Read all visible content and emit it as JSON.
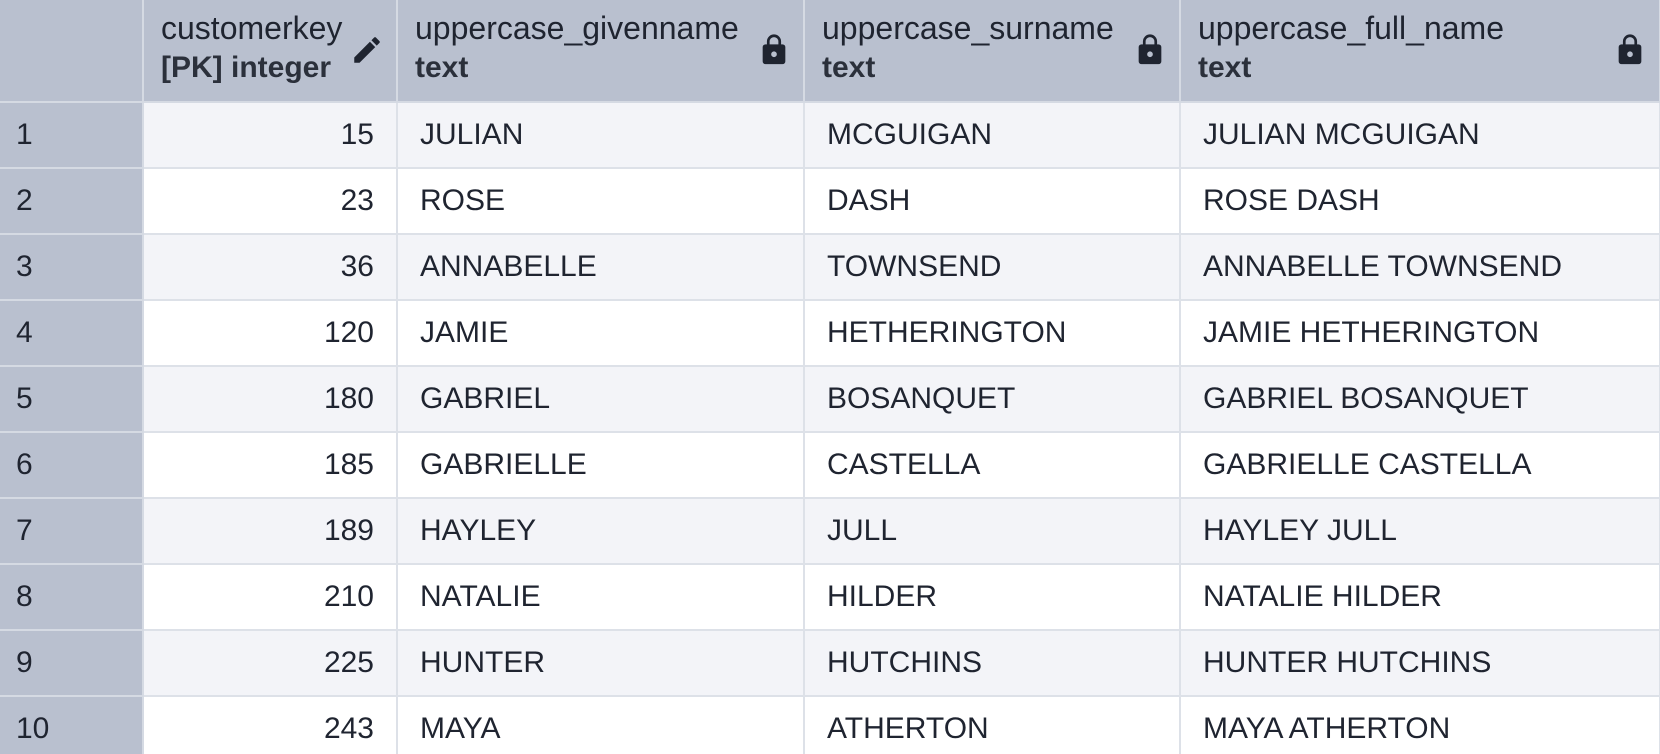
{
  "columns": [
    {
      "name": "customerkey",
      "type": "[PK] integer",
      "icon": "pencil-icon"
    },
    {
      "name": "uppercase_givenname",
      "type": "text",
      "icon": "lock-icon"
    },
    {
      "name": "uppercase_surname",
      "type": "text",
      "icon": "lock-icon"
    },
    {
      "name": "uppercase_full_name",
      "type": "text",
      "icon": "lock-icon"
    }
  ],
  "rows": [
    {
      "index": "1",
      "customerkey": "15",
      "givenname": "JULIAN",
      "surname": "MCGUIGAN",
      "full_name": "JULIAN MCGUIGAN"
    },
    {
      "index": "2",
      "customerkey": "23",
      "givenname": "ROSE",
      "surname": "DASH",
      "full_name": "ROSE DASH"
    },
    {
      "index": "3",
      "customerkey": "36",
      "givenname": "ANNABELLE",
      "surname": "TOWNSEND",
      "full_name": "ANNABELLE TOWNSEND"
    },
    {
      "index": "4",
      "customerkey": "120",
      "givenname": "JAMIE",
      "surname": "HETHERINGTON",
      "full_name": "JAMIE HETHERINGTON"
    },
    {
      "index": "5",
      "customerkey": "180",
      "givenname": "GABRIEL",
      "surname": "BOSANQUET",
      "full_name": "GABRIEL BOSANQUET"
    },
    {
      "index": "6",
      "customerkey": "185",
      "givenname": "GABRIELLE",
      "surname": "CASTELLA",
      "full_name": "GABRIELLE CASTELLA"
    },
    {
      "index": "7",
      "customerkey": "189",
      "givenname": "HAYLEY",
      "surname": "JULL",
      "full_name": "HAYLEY JULL"
    },
    {
      "index": "8",
      "customerkey": "210",
      "givenname": "NATALIE",
      "surname": "HILDER",
      "full_name": "NATALIE HILDER"
    },
    {
      "index": "9",
      "customerkey": "225",
      "givenname": "HUNTER",
      "surname": "HUTCHINS",
      "full_name": "HUNTER HUTCHINS"
    },
    {
      "index": "10",
      "customerkey": "243",
      "givenname": "MAYA",
      "surname": "ATHERTON",
      "full_name": "MAYA ATHERTON"
    }
  ],
  "colors": {
    "header_bg": "#b9c0cf",
    "row_odd_bg": "#f3f4f8",
    "row_even_bg": "#ffffff",
    "text": "#1f2430"
  }
}
